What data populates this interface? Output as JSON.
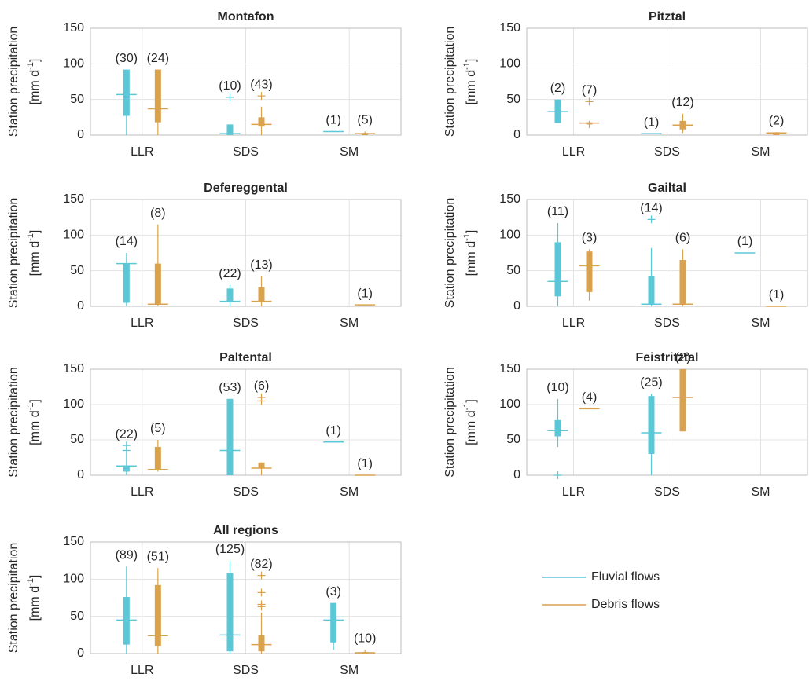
{
  "chart_data": {
    "type": "box",
    "ylabel": {
      "line1": "Station precipitation",
      "unit": "[mm d",
      "exp": "-1",
      "close": "]"
    },
    "categories": [
      "LLR",
      "SDS",
      "SM"
    ],
    "ylim": [
      0,
      150
    ],
    "yticks": [
      0,
      50,
      100,
      150
    ],
    "grid": true,
    "series": [
      {
        "name": "Fluvial flows",
        "color": "#5cc8d7"
      },
      {
        "name": "Debris flows",
        "color": "#d8a24f"
      }
    ],
    "panels": [
      {
        "title": "Montafon",
        "series": [
          {
            "min": [
              0,
              0,
              null
            ],
            "q1": [
              27,
              0,
              null
            ],
            "median": [
              57,
              2,
              5
            ],
            "q3": [
              92,
              15,
              null
            ],
            "max": [
              92,
              15,
              null
            ],
            "outliers": [
              [],
              [
                53
              ],
              []
            ],
            "n_labels": [
              "(30)",
              "(10)",
              "(1)"
            ]
          },
          {
            "min": [
              0,
              0,
              0
            ],
            "q1": [
              18,
              12,
              0
            ],
            "median": [
              37,
              15,
              2
            ],
            "q3": [
              92,
              25,
              3
            ],
            "max": [
              92,
              40,
              5
            ],
            "outliers": [
              [],
              [
                55
              ],
              []
            ],
            "n_labels": [
              "(24)",
              "(43)",
              "(5)"
            ]
          }
        ]
      },
      {
        "title": "Pitztal",
        "series": [
          {
            "min": [
              17,
              null,
              null
            ],
            "q1": [
              17,
              null,
              null
            ],
            "median": [
              33,
              2,
              null
            ],
            "q3": [
              50,
              null,
              null
            ],
            "max": [
              50,
              null,
              null
            ],
            "outliers": [
              [],
              [],
              []
            ],
            "n_labels": [
              "(2)",
              "(1)",
              null
            ]
          },
          {
            "min": [
              10,
              3,
              0
            ],
            "q1": [
              15,
              8,
              0
            ],
            "median": [
              17,
              14,
              3
            ],
            "q3": [
              18,
              20,
              4
            ],
            "max": [
              20,
              30,
              4
            ],
            "outliers": [
              [
                47
              ],
              [],
              []
            ],
            "n_labels": [
              "(7)",
              "(12)",
              "(2)"
            ]
          }
        ]
      },
      {
        "title": "Defereggental",
        "series": [
          {
            "min": [
              0,
              0,
              null
            ],
            "q1": [
              5,
              7,
              null
            ],
            "median": [
              60,
              7,
              null
            ],
            "q3": [
              60,
              25,
              null
            ],
            "max": [
              75,
              30,
              null
            ],
            "outliers": [
              [],
              [],
              []
            ],
            "n_labels": [
              "(14)",
              "(22)",
              null
            ]
          },
          {
            "min": [
              0,
              0,
              null
            ],
            "q1": [
              3,
              7,
              null
            ],
            "median": [
              3,
              7,
              2
            ],
            "q3": [
              60,
              27,
              null
            ],
            "max": [
              115,
              42,
              null
            ],
            "outliers": [
              [],
              [],
              []
            ],
            "n_labels": [
              "(8)",
              "(13)",
              "(1)"
            ]
          }
        ]
      },
      {
        "title": "Gailtal",
        "series": [
          {
            "min": [
              0,
              0,
              null
            ],
            "q1": [
              14,
              3,
              null
            ],
            "median": [
              35,
              3,
              75
            ],
            "q3": [
              90,
              42,
              null
            ],
            "max": [
              117,
              82,
              null
            ],
            "outliers": [
              [],
              [
                122
              ],
              []
            ],
            "n_labels": [
              "(11)",
              "(14)",
              "(1)"
            ]
          },
          {
            "min": [
              8,
              0,
              null
            ],
            "q1": [
              20,
              3,
              null
            ],
            "median": [
              57,
              3,
              0
            ],
            "q3": [
              77,
              65,
              null
            ],
            "max": [
              80,
              80,
              null
            ],
            "outliers": [
              [],
              [],
              []
            ],
            "n_labels": [
              "(3)",
              "(6)",
              "(1)"
            ]
          }
        ]
      },
      {
        "title": "Paltental",
        "series": [
          {
            "min": [
              0,
              0,
              null
            ],
            "q1": [
              5,
              0,
              null
            ],
            "median": [
              13,
              35,
              47
            ],
            "q3": [
              13,
              108,
              null
            ],
            "max": [
              30,
              108,
              null
            ],
            "outliers": [
              [
                35,
                42
              ],
              [],
              []
            ],
            "n_labels": [
              "(22)",
              "(53)",
              "(1)"
            ]
          },
          {
            "min": [
              5,
              0,
              null
            ],
            "q1": [
              8,
              10,
              null
            ],
            "median": [
              8,
              10,
              0
            ],
            "q3": [
              40,
              18,
              null
            ],
            "max": [
              50,
              18,
              null
            ],
            "outliers": [
              [],
              [
                105,
                110
              ],
              []
            ],
            "n_labels": [
              "(5)",
              "(6)",
              "(1)"
            ]
          }
        ]
      },
      {
        "title": "Feistritztal",
        "series": [
          {
            "min": [
              40,
              0,
              null
            ],
            "q1": [
              55,
              30,
              null
            ],
            "median": [
              63,
              60,
              null
            ],
            "q3": [
              78,
              112,
              null
            ],
            "max": [
              108,
              115,
              null
            ],
            "outliers": [
              [
                0
              ],
              [],
              []
            ],
            "n_labels": [
              "(10)",
              "(25)",
              null
            ]
          },
          {
            "min": [
              null,
              62,
              null
            ],
            "q1": [
              null,
              62,
              null
            ],
            "median": [
              94,
              110,
              null
            ],
            "q3": [
              null,
              150,
              null
            ],
            "max": [
              null,
              150,
              null
            ],
            "outliers": [
              [],
              [],
              []
            ],
            "n_labels": [
              "(4)",
              "(2)",
              null
            ]
          }
        ]
      },
      {
        "title": "All regions",
        "series": [
          {
            "min": [
              0,
              0,
              5
            ],
            "q1": [
              12,
              3,
              15
            ],
            "median": [
              45,
              25,
              45
            ],
            "q3": [
              76,
              108,
              68
            ],
            "max": [
              117,
              125,
              68
            ],
            "outliers": [
              [],
              [],
              []
            ],
            "n_labels": [
              "(89)",
              "(125)",
              "(3)"
            ]
          },
          {
            "min": [
              0,
              0,
              0
            ],
            "q1": [
              10,
              3,
              0
            ],
            "median": [
              24,
              12,
              1
            ],
            "q3": [
              92,
              25,
              2
            ],
            "max": [
              115,
              55,
              5
            ],
            "outliers": [
              [],
              [
                63,
                66,
                82,
                105
              ],
              []
            ],
            "n_labels": [
              "(51)",
              "(82)",
              "(10)"
            ]
          }
        ]
      }
    ]
  }
}
